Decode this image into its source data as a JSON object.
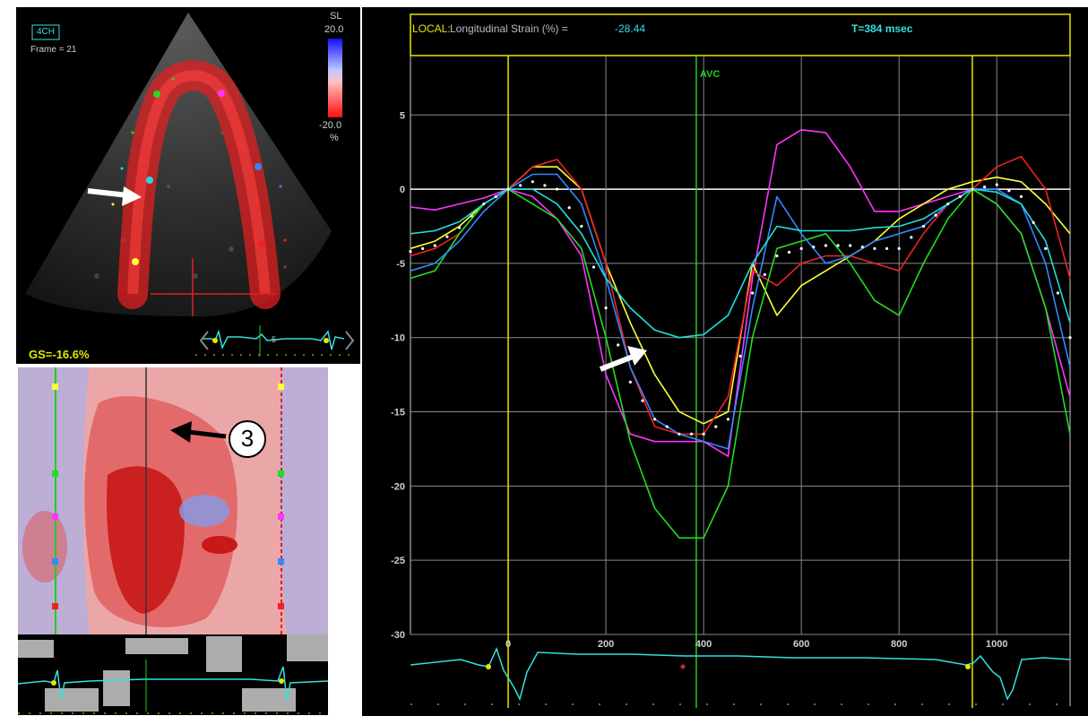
{
  "echo": {
    "view_label": "4CH",
    "frame_label": "Frame = 21",
    "scale_title": "SL",
    "scale_max": "20.0",
    "scale_min": "-20.0",
    "scale_unit": "%",
    "global_strain": "GS=-16.6%",
    "ecg_beat_number": "5"
  },
  "mmode": {
    "callout_number": "3"
  },
  "chart_header": {
    "prefix": "LOCAL:",
    "label": "Longitudinal Strain (%) =",
    "value": "-28.44",
    "time": "T=384 msec"
  },
  "chart_data": {
    "type": "line",
    "xlabel": "",
    "ylabel": "",
    "xlim": [
      -200,
      1150
    ],
    "ylim": [
      -30,
      9
    ],
    "xticks": [
      0,
      200,
      400,
      600,
      800,
      1000
    ],
    "yticks": [
      5,
      0,
      -5,
      -10,
      -15,
      -20,
      -25,
      -30
    ],
    "zero_line": 0,
    "markers": [
      {
        "label": "",
        "x": 0,
        "color": "#e6e600"
      },
      {
        "label": "AVC",
        "x": 385,
        "color": "#22cc22"
      },
      {
        "label": "",
        "x": 950,
        "color": "#e6e600"
      }
    ],
    "x": [
      -200,
      -150,
      -100,
      -50,
      0,
      50,
      100,
      150,
      200,
      250,
      300,
      350,
      400,
      450,
      500,
      550,
      600,
      650,
      700,
      750,
      800,
      850,
      900,
      950,
      1000,
      1050,
      1100,
      1150
    ],
    "series": [
      {
        "color": "#ff33ff",
        "values": [
          -1.2,
          -1.4,
          -1.0,
          -0.6,
          0,
          -0.5,
          -2,
          -4.5,
          -12.5,
          -16.5,
          -17.0,
          -17.0,
          -17.0,
          -18.0,
          -6,
          3,
          4,
          3.8,
          1.5,
          -1.5,
          -1.5,
          -1.0,
          -0.5,
          0,
          -1,
          -3,
          -8,
          -14
        ]
      },
      {
        "color": "#ffff33",
        "values": [
          -4.0,
          -3.5,
          -2.5,
          -1,
          0,
          1.5,
          1.5,
          0,
          -5,
          -9,
          -12.5,
          -15,
          -15.8,
          -15,
          -5,
          -8.5,
          -6.5,
          -5.5,
          -4.5,
          -3.5,
          -2,
          -1,
          0,
          0.5,
          0.8,
          0.5,
          -1,
          -3
        ]
      },
      {
        "color": "#ee2222",
        "values": [
          -4.5,
          -4.0,
          -3.0,
          -1,
          0,
          1.5,
          2,
          0,
          -5,
          -12,
          -16,
          -16.5,
          -16.5,
          -14,
          -5.5,
          -6.5,
          -5,
          -4.5,
          -4.5,
          -5,
          -5.5,
          -3,
          -1,
          0,
          1.5,
          2.2,
          0,
          -6
        ]
      },
      {
        "color": "#22dd22",
        "values": [
          -6,
          -5.5,
          -3,
          -1,
          0,
          -1,
          -2,
          -4,
          -10,
          -17,
          -21.5,
          -23.5,
          -23.5,
          -20,
          -10,
          -4,
          -3.5,
          -3,
          -5,
          -7.5,
          -8.5,
          -5,
          -2,
          0,
          -1,
          -3,
          -8,
          -16.5
        ]
      },
      {
        "color": "#3388ff",
        "values": [
          -5.5,
          -5,
          -3.5,
          -1.5,
          0,
          1,
          1,
          -1,
          -6,
          -12,
          -15.5,
          -16.5,
          -17,
          -17.5,
          -8,
          -0.5,
          -3,
          -5,
          -4.5,
          -3.5,
          -3,
          -2.5,
          -1,
          0,
          0,
          -1,
          -5,
          -12
        ]
      },
      {
        "color": "#22dddd",
        "values": [
          -3,
          -2.8,
          -2.2,
          -1,
          0,
          0,
          -1,
          -3,
          -6,
          -8,
          -9.5,
          -10,
          -9.8,
          -8.5,
          -5,
          -2.5,
          -2.8,
          -2.8,
          -2.8,
          -2.6,
          -2.5,
          -2,
          -1,
          0,
          -0.2,
          -1,
          -3.5,
          -9
        ]
      },
      {
        "color": "#ffffff",
        "dashed": true,
        "values": [
          -4.2,
          -3.8,
          -2.6,
          -1,
          0,
          0.5,
          0,
          -2.5,
          -8,
          -13,
          -15.5,
          -16.5,
          -16.5,
          -15.5,
          -7,
          -4.5,
          -4,
          -3.8,
          -3.8,
          -4,
          -4,
          -2.5,
          -1,
          0,
          0.3,
          -0.5,
          -4,
          -10
        ]
      }
    ]
  },
  "colors": {
    "yellow": "#e6e600",
    "cyan": "#33e0e0",
    "grid": "#8a8a8a"
  }
}
